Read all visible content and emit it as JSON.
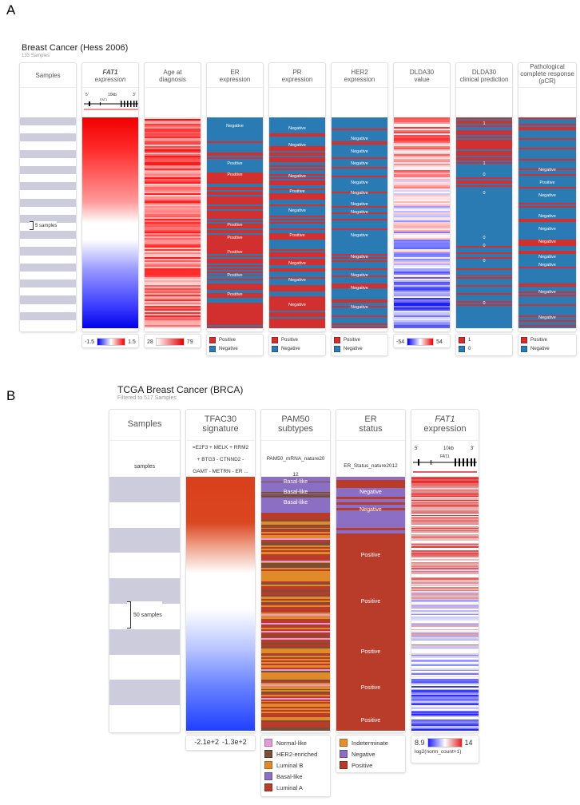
{
  "figure": {
    "label_a": "A",
    "label_b": "B"
  },
  "panel_a": {
    "title": "Breast Cancer (Hess 2006)",
    "subtitle": "133 Samples",
    "samples_header": "Samples",
    "samples_marker": "5 samples",
    "gene_track": {
      "kb": "10kb",
      "gene": "FAT1",
      "five": "5'",
      "three": "3'"
    },
    "columns": {
      "fat1": {
        "title": "FAT1",
        "subtitle": "expression",
        "legend_min": "-1.5",
        "legend_max": "1.5"
      },
      "age": {
        "line1": "Age at",
        "line2": "diagnosis",
        "legend_min": "28",
        "legend_max": "79"
      },
      "er": {
        "line1": "ER",
        "line2": "expression",
        "labels": [
          "Negative",
          "Positive",
          "Positive",
          "Positive",
          "Positive",
          "Positive",
          "Positive",
          "Positive"
        ]
      },
      "pr": {
        "line1": "PR",
        "line2": "expression",
        "labels": [
          "Negative",
          "Negative",
          "Negative",
          "Positive",
          "Negative",
          "Positive",
          "Negative",
          "Negative",
          "Negative"
        ]
      },
      "her2": {
        "line1": "HER2",
        "line2": "expression",
        "labels": [
          "Negative",
          "Negative",
          "Negative",
          "Negative",
          "Negative",
          "Negative",
          "Negative",
          "Negative",
          "Negative",
          "Negative",
          "Negative",
          "Negative"
        ]
      },
      "dlda_value": {
        "line1": "DLDA30",
        "line2": "value",
        "legend_min": "-54",
        "legend_max": "54"
      },
      "dlda_pred": {
        "line1": "DLDA30",
        "line2": "clinical prediction",
        "labels": [
          "1",
          "1",
          "0",
          "0",
          "0",
          "0",
          "0",
          "0"
        ]
      },
      "pcr": {
        "line1": "Pathological",
        "line2": "complete response",
        "line3": "(pCR)",
        "labels": [
          "Negative",
          "Positive",
          "Negative",
          "Negative",
          "Negative",
          "Negative",
          "Negative",
          "Negative",
          "Negative",
          "Negative"
        ]
      }
    },
    "legends": {
      "posneg": [
        "Positive",
        "Negative"
      ],
      "binary": [
        "1",
        "0"
      ]
    }
  },
  "panel_b": {
    "title": "TCGA Breast Cancer (BRCA)",
    "subtitle": "Filtered to 517 Samples",
    "samples_header": "Samples",
    "samples_row": "samples",
    "samples_marker": "50 samples",
    "tfac": {
      "line1": "TFAC30",
      "line2": "signature",
      "formula1": "=E2F3 + MELK + RRM2",
      "formula2": "+ BTG3 - CTNND2 -",
      "formula3": "GAMT - METRN - ER ...",
      "legend_min": "-2.1e+2",
      "legend_max": "-1.3e+2"
    },
    "pam50": {
      "line1": "PAM50",
      "line2": "subtypes",
      "field1": "PAM50_mRNA_nature20",
      "field2": "12",
      "labels": [
        "Basal-like",
        "Basal-like",
        "Basal-like"
      ],
      "legend": [
        "Normal-like",
        "HER2-enriched",
        "Luminal B",
        "Basal-like",
        "Luminal A"
      ]
    },
    "er": {
      "line1": "ER",
      "line2": "status",
      "field": "ER_Status_nature2012",
      "labels": [
        "Negative",
        "Negative",
        "Positive",
        "Positive",
        "Positive",
        "Positive",
        "Positive"
      ],
      "legend": [
        "Indeterminate",
        "Negative",
        "Positive"
      ]
    },
    "fat1": {
      "title": "FAT1",
      "subtitle": "expression",
      "legend_min": "8.9",
      "legend_max": "14",
      "legend_caption": "log2(norm_count+1)"
    },
    "gene_track": {
      "kb": "10kb",
      "gene": "FAT1",
      "five": "5'",
      "three": "3'"
    }
  },
  "colors": {
    "positive": "#d22f2f",
    "negative": "#2a7ab4",
    "basal": "#8a6fc4",
    "luminal_a": "#b83c29",
    "luminal_b": "#e08a2a",
    "her2": "#7a4f3a",
    "normal": "#e39ad9",
    "indeterminate": "#e88e2e",
    "er_negative": "#8a6fc4",
    "er_positive": "#b83c29",
    "stripe": "#ccccdd"
  }
}
